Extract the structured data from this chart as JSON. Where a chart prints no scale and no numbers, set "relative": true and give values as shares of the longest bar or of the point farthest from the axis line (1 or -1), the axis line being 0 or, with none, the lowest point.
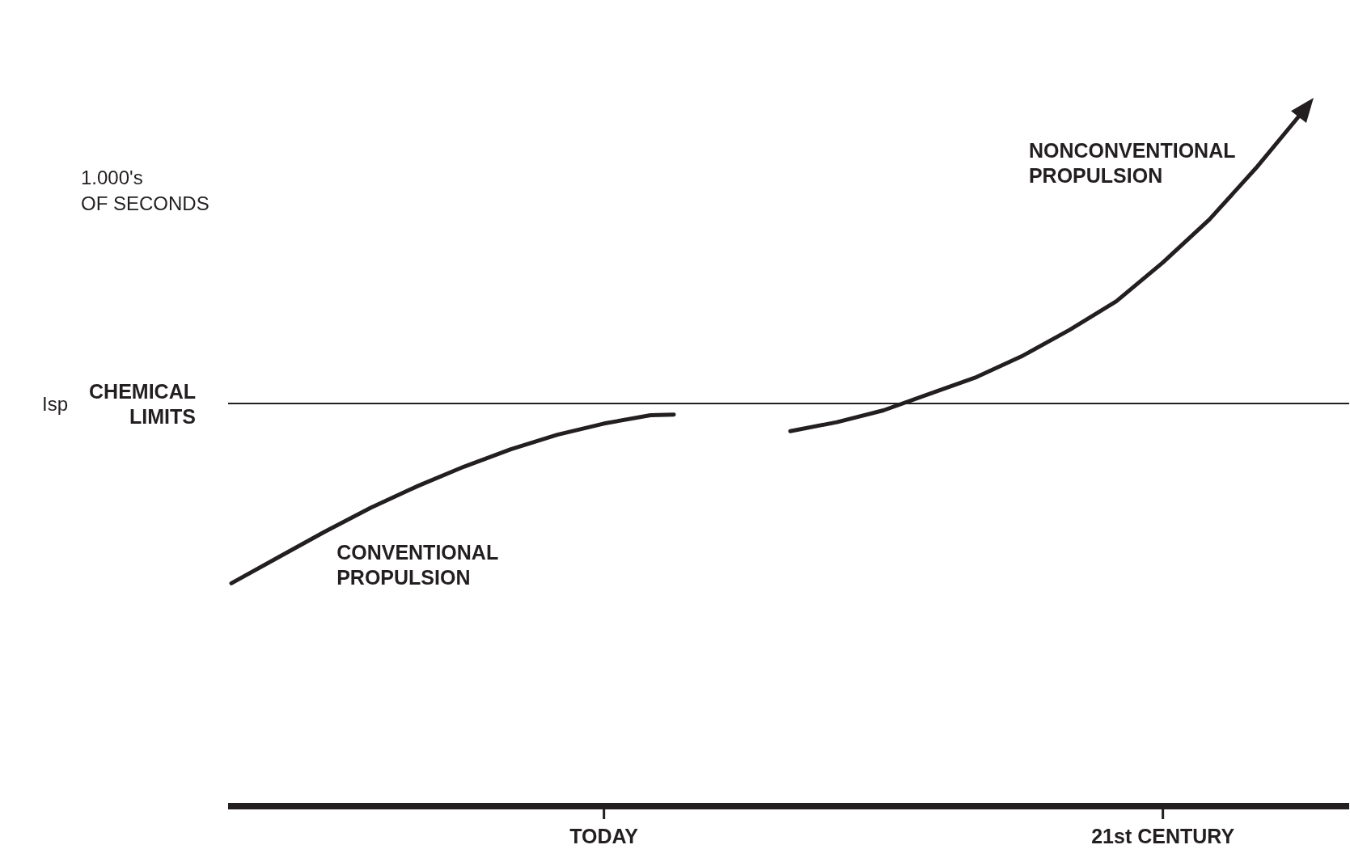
{
  "chart_data": {
    "type": "line",
    "relative": true,
    "annotations": [
      "Isp",
      "1.000's OF SECONDS"
    ],
    "categories": [
      null,
      null,
      null,
      null,
      null,
      null,
      null,
      null,
      null,
      null,
      null,
      null,
      null,
      null,
      null,
      null,
      "TODAY",
      null,
      null,
      null,
      null,
      null,
      null,
      null,
      null,
      null,
      null,
      null,
      null,
      null,
      null,
      null,
      null,
      null,
      null,
      null,
      null,
      null,
      null,
      null,
      "21st CENTURY",
      null,
      null,
      null,
      null,
      null,
      null,
      null,
      null
    ],
    "series": [
      {
        "name": "CONVENTIONAL PROPULSION",
        "color": "#231f20",
        "values": [
          0.321,
          null,
          0.358,
          null,
          0.395,
          null,
          0.43,
          null,
          0.461,
          null,
          0.489,
          null,
          0.514,
          null,
          0.535,
          null,
          0.551,
          null,
          0.563,
          0.564,
          null,
          null,
          null,
          null,
          null,
          null,
          null,
          null,
          null,
          null,
          null,
          null,
          null,
          null,
          null,
          null,
          null,
          null,
          null,
          null,
          null,
          null,
          null,
          null,
          null,
          null,
          null,
          null,
          null
        ]
      },
      {
        "name": "NONCONVENTIONAL PROPULSION",
        "color": "#231f20",
        "values": [
          null,
          null,
          null,
          null,
          null,
          null,
          null,
          null,
          null,
          null,
          null,
          null,
          null,
          null,
          null,
          null,
          null,
          null,
          null,
          null,
          null,
          null,
          null,
          null,
          0.54,
          null,
          0.553,
          null,
          0.57,
          null,
          0.594,
          null,
          0.618,
          null,
          0.649,
          null,
          0.686,
          null,
          0.727,
          null,
          0.783,
          null,
          0.845,
          null,
          0.919,
          null,
          1,
          null,
          null
        ]
      }
    ],
    "ref_lines": [
      {
        "axis": "y",
        "value": 0.58,
        "label": "CHEMICAL LIMITS",
        "color": "#231f20"
      }
    ],
    "marker": "none",
    "line_style": "solid"
  }
}
